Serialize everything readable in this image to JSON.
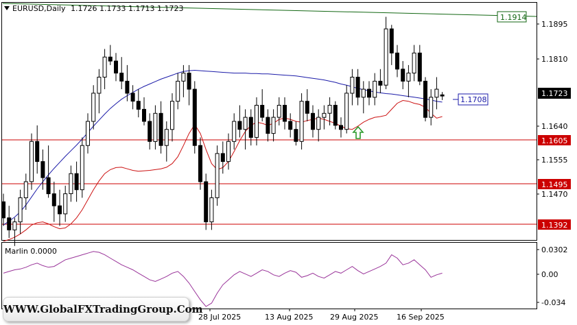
{
  "header": {
    "symbol": "EURUSD,Daily",
    "ohlc": "1.1726 1.1733 1.1713 1.1723"
  },
  "watermark": "WWW.GlobalFXTradingGroup.Com",
  "colors": {
    "bull": "#ffffff",
    "bear": "#000000",
    "ma_blue": "#1a1aa8",
    "line_red": "#cc1111",
    "hline_red": "#cc0000",
    "trend_green": "#116611",
    "marlin": "#993399",
    "arrow": "#2a9a2a"
  },
  "chart_data": [
    {
      "type": "candlestick",
      "symbol": "EURUSD",
      "timeframe": "Daily",
      "ohlc": {
        "open": 1.1726,
        "high": 1.1733,
        "low": 1.1713,
        "close": 1.1723
      },
      "x_ticks": [
        "28 Jul 2025",
        "13 Aug 2025",
        "29 Aug 2025",
        "16 Sep 2025"
      ],
      "y_ticks": [
        "1.1895",
        "1.1810",
        "1.1640",
        "1.1555",
        "1.1470"
      ],
      "ylim": [
        1.1365,
        1.1955
      ],
      "price_labels": [
        {
          "text": "1.1914",
          "color": "#116611",
          "kind": "trendline"
        },
        {
          "text": "1.1723",
          "color": "#000000",
          "kind": "current"
        },
        {
          "text": "1.1708",
          "color": "#1a1aa8",
          "kind": "ma"
        },
        {
          "text": "1.1605",
          "color": "#cc0000",
          "kind": "level"
        },
        {
          "text": "1.1495",
          "color": "#cc0000",
          "kind": "level"
        },
        {
          "text": "1.1392",
          "color": "#cc0000",
          "kind": "level"
        }
      ],
      "levels": [
        1.1605,
        1.1495,
        1.1392
      ],
      "candles": [
        [
          1.146,
          1.148,
          1.14,
          1.142
        ],
        [
          1.142,
          1.145,
          1.137,
          1.139
        ],
        [
          1.139,
          1.142,
          1.135,
          1.141
        ],
        [
          1.141,
          1.149,
          1.138,
          1.147
        ],
        [
          1.147,
          1.153,
          1.144,
          1.151
        ],
        [
          1.151,
          1.163,
          1.149,
          1.161
        ],
        [
          1.161,
          1.165,
          1.153,
          1.156
        ],
        [
          1.156,
          1.159,
          1.149,
          1.152
        ],
        [
          1.152,
          1.16,
          1.147,
          1.148
        ],
        [
          1.148,
          1.151,
          1.141,
          1.145
        ],
        [
          1.145,
          1.149,
          1.14,
          1.143
        ],
        [
          1.143,
          1.15,
          1.141,
          1.148
        ],
        [
          1.148,
          1.155,
          1.146,
          1.153
        ],
        [
          1.153,
          1.156,
          1.146,
          1.149
        ],
        [
          1.149,
          1.162,
          1.147,
          1.16
        ],
        [
          1.16,
          1.168,
          1.158,
          1.166
        ],
        [
          1.166,
          1.175,
          1.164,
          1.173
        ],
        [
          1.173,
          1.179,
          1.168,
          1.177
        ],
        [
          1.177,
          1.184,
          1.174,
          1.182
        ],
        [
          1.182,
          1.185,
          1.18,
          1.181
        ],
        [
          1.181,
          1.183,
          1.176,
          1.178
        ],
        [
          1.178,
          1.182,
          1.174,
          1.176
        ],
        [
          1.176,
          1.18,
          1.171,
          1.173
        ],
        [
          1.173,
          1.175,
          1.169,
          1.171
        ],
        [
          1.171,
          1.174,
          1.167,
          1.169
        ],
        [
          1.169,
          1.172,
          1.165,
          1.166
        ],
        [
          1.166,
          1.168,
          1.159,
          1.161
        ],
        [
          1.161,
          1.17,
          1.159,
          1.168
        ],
        [
          1.168,
          1.171,
          1.158,
          1.16
        ],
        [
          1.16,
          1.166,
          1.156,
          1.164
        ],
        [
          1.164,
          1.173,
          1.161,
          1.171
        ],
        [
          1.171,
          1.178,
          1.169,
          1.176
        ],
        [
          1.176,
          1.18,
          1.172,
          1.178
        ],
        [
          1.178,
          1.18,
          1.17,
          1.174
        ],
        [
          1.174,
          1.176,
          1.158,
          1.16
        ],
        [
          1.16,
          1.162,
          1.149,
          1.151
        ],
        [
          1.151,
          1.153,
          1.139,
          1.141
        ],
        [
          1.141,
          1.149,
          1.139,
          1.147
        ],
        [
          1.147,
          1.16,
          1.145,
          1.158
        ],
        [
          1.158,
          1.161,
          1.153,
          1.156
        ],
        [
          1.156,
          1.163,
          1.154,
          1.161
        ],
        [
          1.161,
          1.168,
          1.159,
          1.166
        ],
        [
          1.166,
          1.17,
          1.162,
          1.164
        ],
        [
          1.164,
          1.169,
          1.159,
          1.167
        ],
        [
          1.167,
          1.169,
          1.16,
          1.162
        ],
        [
          1.162,
          1.172,
          1.16,
          1.17
        ],
        [
          1.17,
          1.174,
          1.166,
          1.167
        ],
        [
          1.167,
          1.169,
          1.161,
          1.163
        ],
        [
          1.163,
          1.169,
          1.161,
          1.167
        ],
        [
          1.167,
          1.172,
          1.165,
          1.17
        ],
        [
          1.17,
          1.172,
          1.164,
          1.166
        ],
        [
          1.166,
          1.168,
          1.162,
          1.164
        ],
        [
          1.164,
          1.166,
          1.16,
          1.161
        ],
        [
          1.161,
          1.173,
          1.159,
          1.171
        ],
        [
          1.171,
          1.174,
          1.166,
          1.168
        ],
        [
          1.168,
          1.17,
          1.162,
          1.164
        ],
        [
          1.164,
          1.169,
          1.161,
          1.167
        ],
        [
          1.167,
          1.17,
          1.164,
          1.168
        ],
        [
          1.168,
          1.172,
          1.165,
          1.17
        ],
        [
          1.17,
          1.171,
          1.164,
          1.165
        ],
        [
          1.165,
          1.167,
          1.162,
          1.164
        ],
        [
          1.164,
          1.175,
          1.163,
          1.173
        ],
        [
          1.173,
          1.179,
          1.17,
          1.177
        ],
        [
          1.177,
          1.179,
          1.17,
          1.172
        ],
        [
          1.172,
          1.176,
          1.168,
          1.174
        ],
        [
          1.174,
          1.176,
          1.17,
          1.172
        ],
        [
          1.172,
          1.178,
          1.17,
          1.176
        ],
        [
          1.176,
          1.179,
          1.173,
          1.175
        ],
        [
          1.175,
          1.192,
          1.174,
          1.189
        ],
        [
          1.189,
          1.19,
          1.18,
          1.183
        ],
        [
          1.183,
          1.185,
          1.177,
          1.179
        ],
        [
          1.179,
          1.181,
          1.174,
          1.176
        ],
        [
          1.176,
          1.18,
          1.172,
          1.178
        ],
        [
          1.178,
          1.185,
          1.176,
          1.183
        ],
        [
          1.183,
          1.185,
          1.175,
          1.176
        ],
        [
          1.176,
          1.177,
          1.166,
          1.167
        ],
        [
          1.167,
          1.174,
          1.165,
          1.172
        ],
        [
          1.172,
          1.177,
          1.169,
          1.174
        ],
        [
          1.1726,
          1.1733,
          1.1713,
          1.1723
        ]
      ],
      "overlays": [
        {
          "name": "ma_blue",
          "color": "#1a1aa8",
          "values": [
            1.1402,
            1.1412,
            1.1422,
            1.1435,
            1.1452,
            1.1472,
            1.1492,
            1.151,
            1.1527,
            1.1543,
            1.1558,
            1.1573,
            1.1587,
            1.1601,
            1.1616,
            1.1632,
            1.1648,
            1.1663,
            1.1678,
            1.1692,
            1.1704,
            1.1715,
            1.1724,
            1.1732,
            1.174,
            1.1747,
            1.1753,
            1.1759,
            1.1765,
            1.177,
            1.1775,
            1.178,
            1.1784,
            1.1786,
            1.1787,
            1.1786,
            1.1785,
            1.1784,
            1.1783,
            1.1782,
            1.1781,
            1.178,
            1.178,
            1.178,
            1.1779,
            1.1779,
            1.1778,
            1.1778,
            1.1777,
            1.1776,
            1.1775,
            1.1774,
            1.1773,
            1.1771,
            1.1769,
            1.1767,
            1.1765,
            1.1763,
            1.176,
            1.1757,
            1.1753,
            1.175,
            1.1746,
            1.1742,
            1.1739,
            1.1736,
            1.1733,
            1.1731,
            1.1729,
            1.1728,
            1.1726,
            1.1724,
            1.1722,
            1.172,
            1.1718,
            1.1716,
            1.1713,
            1.171,
            1.1708
          ]
        },
        {
          "name": "line_red",
          "color": "#cc1111",
          "values": [
            1.1362,
            1.1366,
            1.1372,
            1.138,
            1.139,
            1.1402,
            1.1408,
            1.141,
            1.1405,
            1.1398,
            1.1393,
            1.1395,
            1.1405,
            1.142,
            1.144,
            1.1465,
            1.149,
            1.1512,
            1.153,
            1.154,
            1.1545,
            1.1546,
            1.1542,
            1.1538,
            1.1536,
            1.1537,
            1.1538,
            1.154,
            1.1542,
            1.1546,
            1.1555,
            1.1572,
            1.16,
            1.163,
            1.1652,
            1.163,
            1.159,
            1.1555,
            1.154,
            1.1545,
            1.156,
            1.1585,
            1.1612,
            1.1635,
            1.165,
            1.1658,
            1.1655,
            1.165,
            1.1655,
            1.1665,
            1.1668,
            1.1665,
            1.166,
            1.1658,
            1.1662,
            1.1665,
            1.1668,
            1.1665,
            1.166,
            1.1655,
            1.1648,
            1.1642,
            1.164,
            1.1648,
            1.1658,
            1.1665,
            1.167,
            1.1672,
            1.1675,
            1.169,
            1.1705,
            1.1712,
            1.171,
            1.1705,
            1.1702,
            1.1695,
            1.168,
            1.1668,
            1.1672
          ]
        },
        {
          "name": "trend_green",
          "color": "#116611",
          "from": 1.1993,
          "to": 1.1914
        }
      ]
    },
    {
      "type": "line",
      "title": "Marlin 0.0000",
      "series": [
        {
          "name": "Marlin",
          "color": "#993399",
          "values": [
            0.0,
            0.002,
            0.004,
            0.005,
            0.007,
            0.01,
            0.012,
            0.009,
            0.007,
            0.008,
            0.012,
            0.016,
            0.018,
            0.02,
            0.022,
            0.024,
            0.026,
            0.025,
            0.022,
            0.018,
            0.014,
            0.01,
            0.007,
            0.004,
            0.0,
            -0.004,
            -0.008,
            -0.01,
            -0.007,
            -0.004,
            0.0,
            0.002,
            -0.004,
            -0.012,
            -0.022,
            -0.032,
            -0.04,
            -0.036,
            -0.024,
            -0.014,
            -0.008,
            -0.002,
            0.002,
            -0.001,
            -0.004,
            0.0,
            0.004,
            0.002,
            -0.002,
            -0.004,
            0.0,
            0.003,
            0.001,
            -0.005,
            -0.003,
            0.0,
            -0.004,
            -0.006,
            -0.002,
            0.002,
            0.0,
            0.004,
            0.008,
            0.003,
            -0.001,
            0.002,
            0.005,
            0.008,
            0.012,
            0.022,
            0.018,
            0.01,
            0.012,
            0.016,
            0.01,
            0.004,
            -0.005,
            -0.002,
            0.0
          ]
        }
      ],
      "y_ticks": [
        "0.0302",
        "0.00",
        "-0.034"
      ],
      "ylim": [
        -0.0425,
        0.0365
      ]
    }
  ]
}
